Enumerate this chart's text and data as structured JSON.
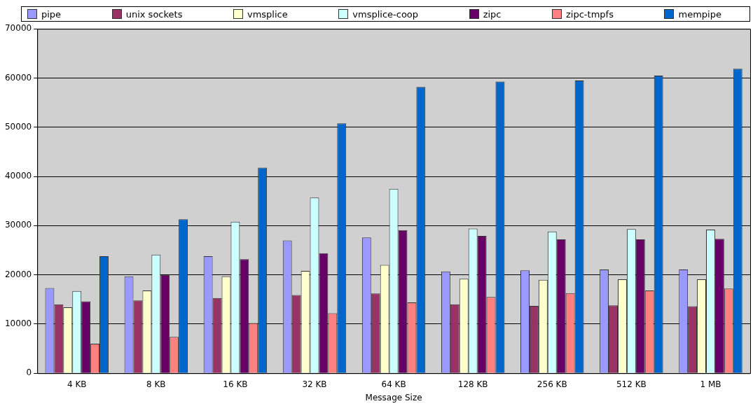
{
  "chart_data": {
    "type": "bar",
    "xlabel": "Message Size",
    "categories": [
      "4 KB",
      "8 KB",
      "16 KB",
      "32 KB",
      "64 KB",
      "128 KB",
      "256 KB",
      "512 KB",
      "1 MB"
    ],
    "series": [
      {
        "name": "pipe",
        "color": "#9999ff",
        "values": [
          17300,
          19700,
          23800,
          27000,
          27600,
          20700,
          20900,
          21100,
          21100
        ]
      },
      {
        "name": "unix sockets",
        "color": "#993366",
        "values": [
          14000,
          14800,
          15300,
          15900,
          16200,
          14000,
          13700,
          13800,
          13600
        ]
      },
      {
        "name": "vmsplice",
        "color": "#ffffcc",
        "values": [
          13400,
          16800,
          19700,
          20800,
          22000,
          19200,
          19000,
          19100,
          19100
        ]
      },
      {
        "name": "vmsplice-coop",
        "color": "#ccffff",
        "values": [
          16700,
          24100,
          30800,
          35700,
          37500,
          29400,
          28800,
          29300,
          29200
        ]
      },
      {
        "name": "zipc",
        "color": "#660066",
        "values": [
          14600,
          20000,
          23200,
          24400,
          29100,
          27900,
          27200,
          27200,
          27300
        ]
      },
      {
        "name": "zipc-tmpfs",
        "color": "#ff8080",
        "values": [
          6000,
          7400,
          10200,
          12200,
          14400,
          15500,
          16300,
          16800,
          17200
        ]
      },
      {
        "name": "mempipe",
        "color": "#0066cc",
        "values": [
          23800,
          31300,
          41800,
          50800,
          58200,
          59300,
          59500,
          60500,
          61900
        ]
      }
    ],
    "ylim": [
      0,
      70000
    ],
    "yticks": [
      0,
      10000,
      20000,
      30000,
      40000,
      50000,
      60000,
      70000
    ],
    "grid": "y",
    "legend": "top"
  }
}
